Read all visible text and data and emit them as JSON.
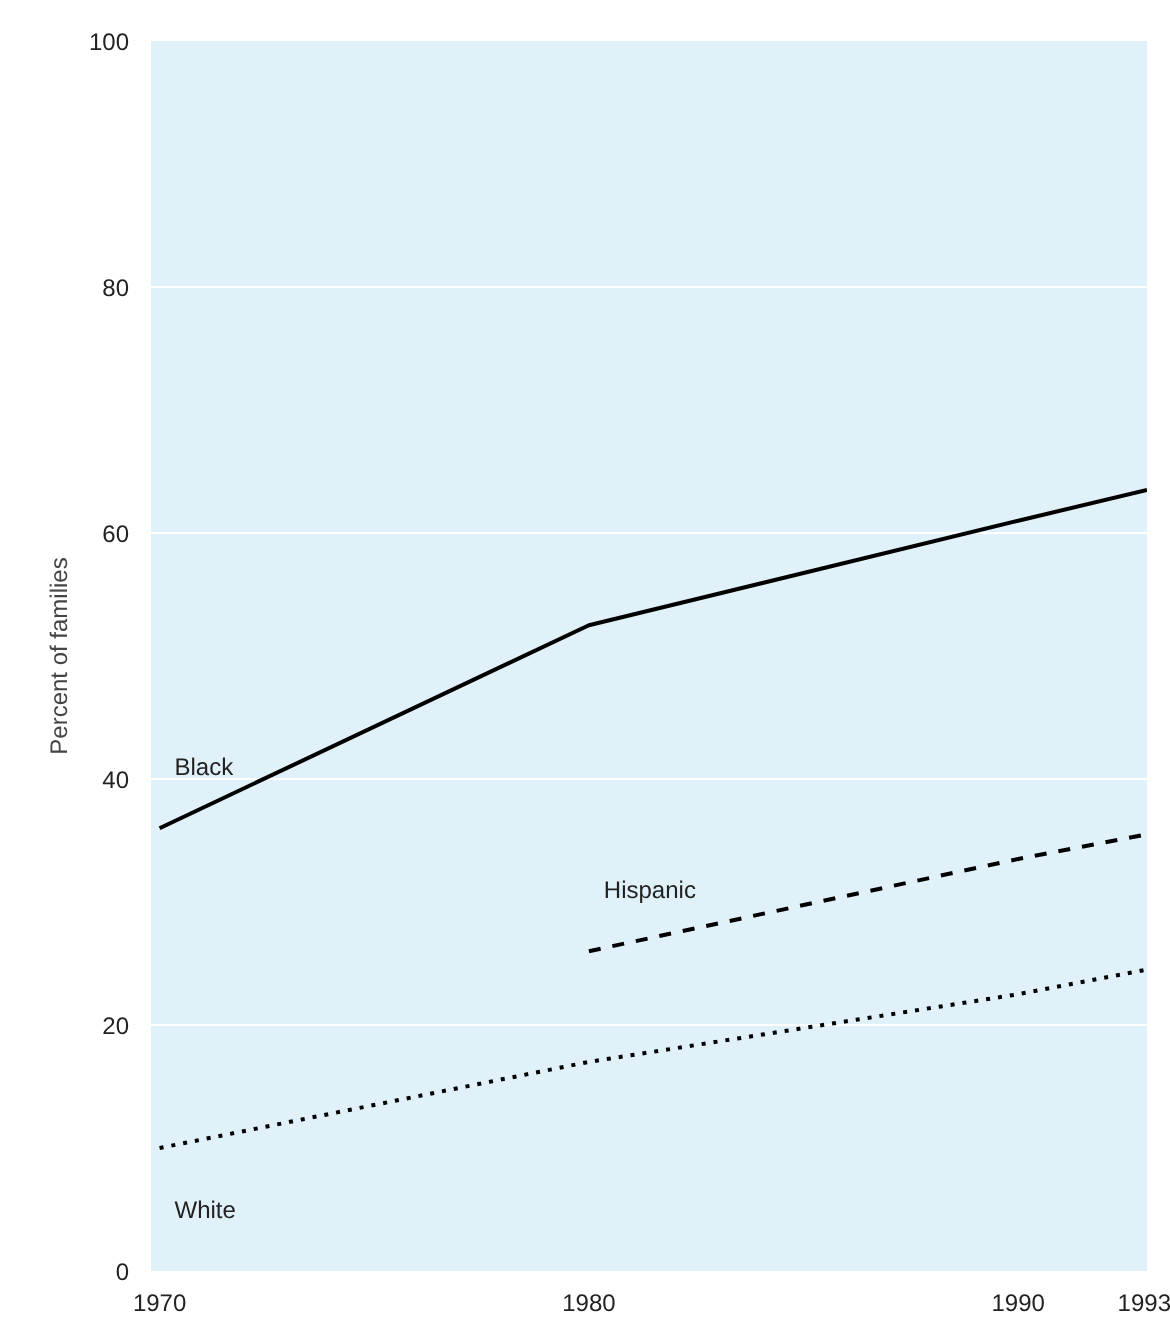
{
  "chart_data": {
    "type": "line",
    "ylabel": "Percent of families",
    "x": [
      1970,
      1980,
      1990,
      1993
    ],
    "xlim": [
      1969.8,
      1993
    ],
    "xticks": [
      1970,
      1980,
      1990,
      1993
    ],
    "ylim": [
      0,
      100
    ],
    "yticks": [
      0,
      20,
      40,
      60,
      80,
      100
    ],
    "grid": "y",
    "legend": false,
    "series": [
      {
        "name": "Black",
        "color": "#000000",
        "line_style": "solid",
        "values": [
          36,
          52.5,
          61,
          63.5
        ]
      },
      {
        "name": "Hispanic",
        "color": "#000000",
        "line_style": "dashed",
        "values": [
          null,
          26,
          33.5,
          35.5
        ]
      },
      {
        "name": "White",
        "color": "#000000",
        "line_style": "dotted",
        "values": [
          10,
          17,
          22.5,
          24.5
        ]
      }
    ]
  }
}
